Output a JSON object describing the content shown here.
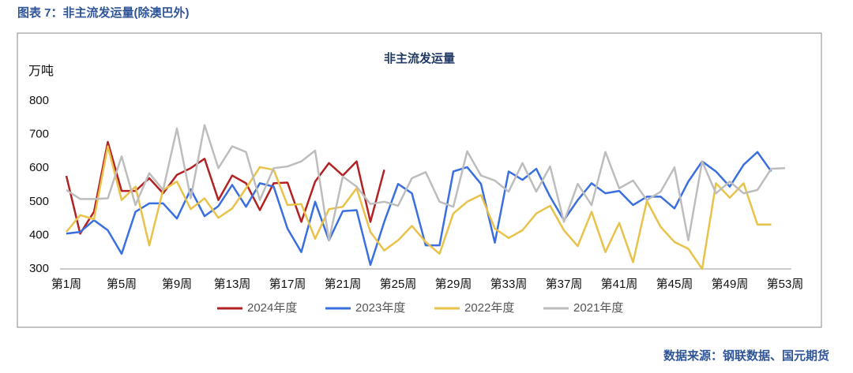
{
  "header": {
    "title": "图表 7：非主流发运量(除澳巴外)"
  },
  "source": "数据来源：钢联数据、国元期货",
  "chart_data": {
    "type": "line",
    "title": "非主流发运量",
    "y_label": "万吨",
    "categories": [
      "第1周",
      null,
      null,
      null,
      "第5周",
      null,
      null,
      null,
      "第9周",
      null,
      null,
      null,
      "第13周",
      null,
      null,
      null,
      "第17周",
      null,
      null,
      null,
      "第21周",
      null,
      null,
      null,
      "第25周",
      null,
      null,
      null,
      "第29周",
      null,
      null,
      null,
      "第33周",
      null,
      null,
      null,
      "第37周",
      null,
      null,
      null,
      "第41周",
      null,
      null,
      null,
      "第45周",
      null,
      null,
      null,
      "第49周",
      null,
      null,
      null,
      "第53周"
    ],
    "ylim": [
      300,
      800
    ],
    "yticks": [
      300,
      400,
      500,
      600,
      700,
      800
    ],
    "legend": "bottom",
    "series": [
      {
        "name": "2024年度",
        "color": "#b22222",
        "values": [
          577,
          405,
          470,
          678,
          532,
          532,
          570,
          525,
          580,
          600,
          628,
          505,
          578,
          555,
          475,
          555,
          557,
          440,
          560,
          615,
          578,
          620,
          440,
          595,
          null,
          null,
          null,
          null,
          null,
          null,
          null,
          null,
          null,
          null,
          null,
          null,
          null,
          null,
          null,
          null,
          null,
          null,
          null,
          null,
          null,
          null,
          null,
          null,
          null,
          null,
          null,
          null,
          null
        ]
      },
      {
        "name": "2023年度",
        "color": "#3a6fe0",
        "values": [
          405,
          410,
          445,
          415,
          345,
          470,
          495,
          495,
          450,
          537,
          457,
          487,
          550,
          485,
          555,
          545,
          420,
          350,
          500,
          385,
          472,
          475,
          312,
          440,
          553,
          525,
          370,
          370,
          590,
          603,
          553,
          378,
          590,
          565,
          598,
          515,
          445,
          505,
          555,
          525,
          532,
          490,
          515,
          515,
          480,
          560,
          620,
          590,
          545,
          610,
          648,
          590,
          null
        ]
      },
      {
        "name": "2022年度",
        "color": "#e8c24a",
        "values": [
          410,
          460,
          448,
          665,
          505,
          545,
          370,
          535,
          560,
          478,
          510,
          452,
          480,
          540,
          603,
          595,
          490,
          493,
          390,
          478,
          485,
          540,
          410,
          355,
          385,
          428,
          380,
          345,
          465,
          500,
          520,
          420,
          392,
          415,
          465,
          488,
          415,
          368,
          470,
          350,
          437,
          320,
          502,
          425,
          380,
          360,
          300,
          555,
          512,
          555,
          432,
          432,
          null
        ]
      },
      {
        "name": "2021年度",
        "color": "#bdbdbd",
        "values": [
          535,
          508,
          508,
          510,
          635,
          490,
          585,
          535,
          718,
          510,
          728,
          600,
          665,
          648,
          505,
          600,
          605,
          620,
          652,
          385,
          575,
          545,
          493,
          500,
          488,
          570,
          588,
          500,
          485,
          650,
          578,
          563,
          530,
          615,
          530,
          605,
          440,
          553,
          490,
          648,
          540,
          563,
          505,
          530,
          602,
          385,
          620,
          525,
          560,
          525,
          535,
          598,
          600
        ]
      }
    ]
  }
}
